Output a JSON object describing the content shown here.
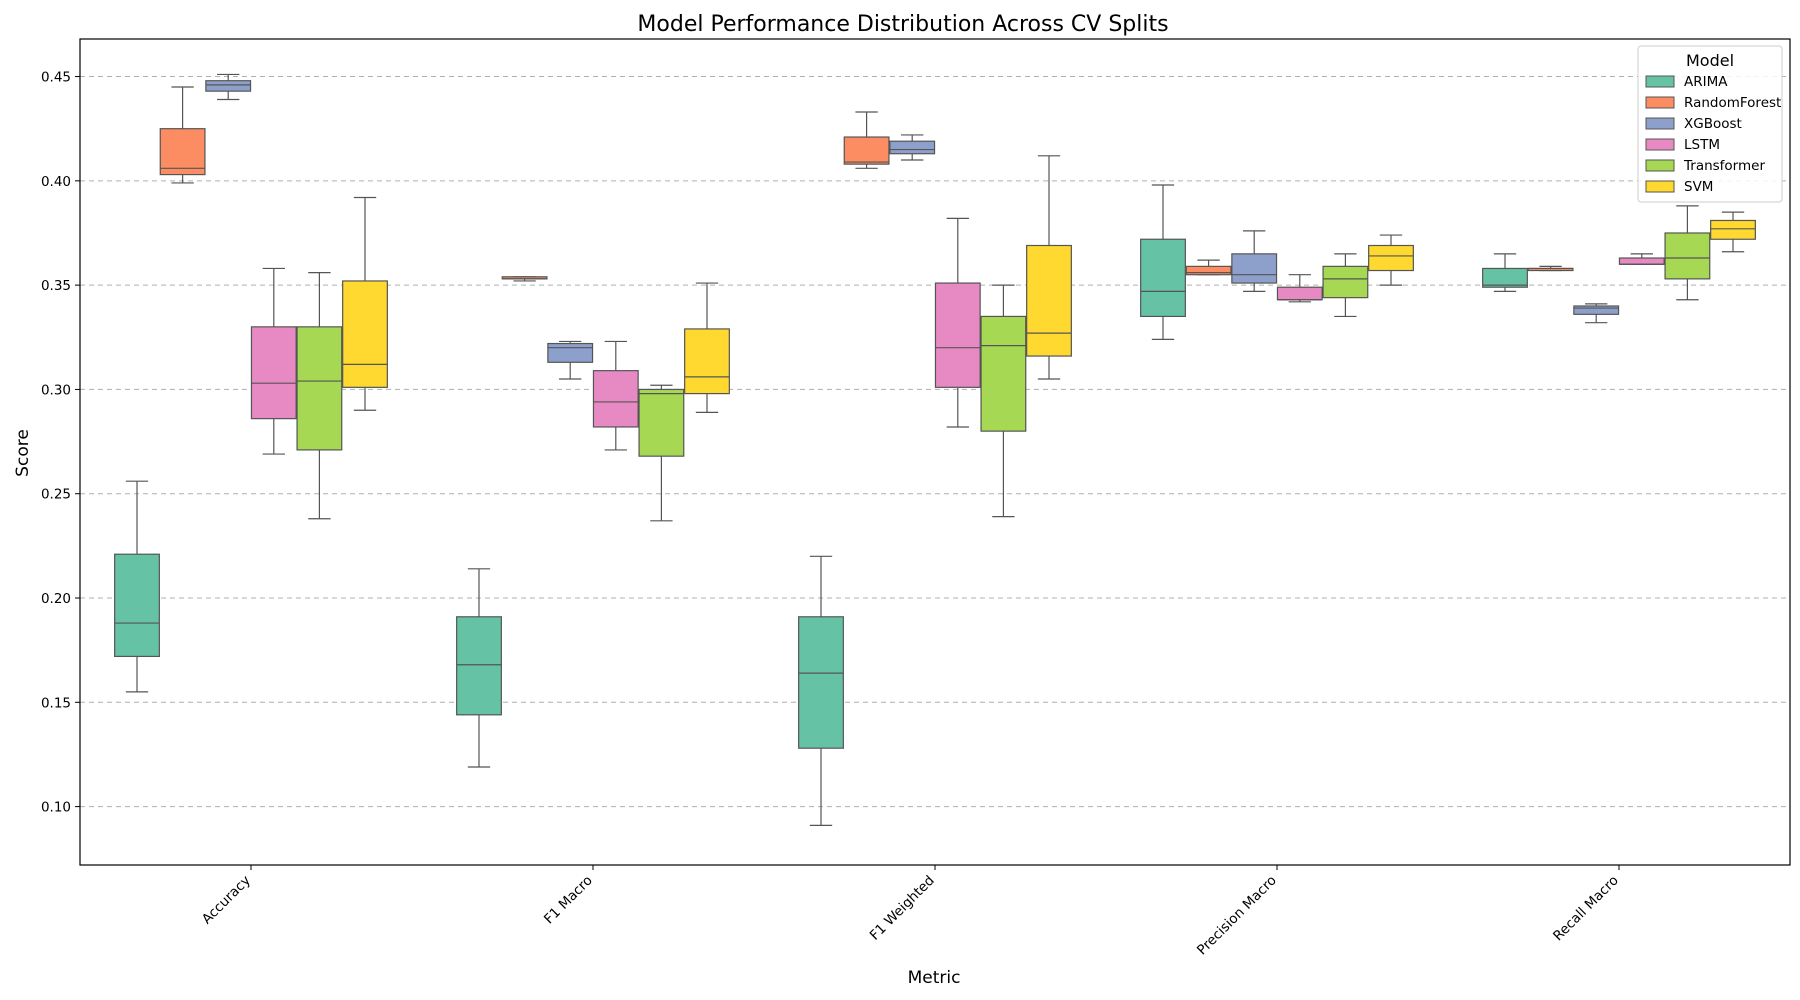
{
  "chart_data": {
    "type": "box",
    "title": "Model Performance Distribution Across CV Splits",
    "xlabel": "Metric",
    "ylabel": "Score",
    "ylim": [
      0.072,
      0.468
    ],
    "yticks": [
      0.1,
      0.15,
      0.2,
      0.25,
      0.3,
      0.35,
      0.4,
      0.45
    ],
    "ytick_labels": [
      "0.10",
      "0.15",
      "0.20",
      "0.25",
      "0.30",
      "0.35",
      "0.40",
      "0.45"
    ],
    "grid": "y-dashed",
    "legend": {
      "title": "Model",
      "position": "top-right"
    },
    "categories": [
      "Accuracy",
      "F1 Macro",
      "F1 Weighted",
      "Precision Macro",
      "Recall Macro"
    ],
    "series": [
      {
        "name": "ARIMA",
        "color": "#66c2a5",
        "boxes": [
          {
            "whislo": 0.155,
            "q1": 0.172,
            "med": 0.188,
            "q3": 0.221,
            "whishi": 0.256
          },
          {
            "whislo": 0.119,
            "q1": 0.144,
            "med": 0.168,
            "q3": 0.191,
            "whishi": 0.214
          },
          {
            "whislo": 0.091,
            "q1": 0.128,
            "med": 0.164,
            "q3": 0.191,
            "whishi": 0.22
          },
          {
            "whislo": 0.324,
            "q1": 0.335,
            "med": 0.347,
            "q3": 0.372,
            "whishi": 0.398
          },
          {
            "whislo": 0.347,
            "q1": 0.349,
            "med": 0.35,
            "q3": 0.358,
            "whishi": 0.365
          }
        ]
      },
      {
        "name": "RandomForest",
        "color": "#fc8d62",
        "boxes": [
          {
            "whislo": 0.399,
            "q1": 0.403,
            "med": 0.406,
            "q3": 0.425,
            "whishi": 0.445
          },
          {
            "whislo": 0.352,
            "q1": 0.353,
            "med": 0.353,
            "q3": 0.354,
            "whishi": 0.354
          },
          {
            "whislo": 0.406,
            "q1": 0.408,
            "med": 0.409,
            "q3": 0.421,
            "whishi": 0.433
          },
          {
            "whislo": 0.355,
            "q1": 0.355,
            "med": 0.356,
            "q3": 0.359,
            "whishi": 0.362
          },
          {
            "whislo": 0.357,
            "q1": 0.357,
            "med": 0.358,
            "q3": 0.358,
            "whishi": 0.359
          }
        ]
      },
      {
        "name": "XGBoost",
        "color": "#8da0cb",
        "boxes": [
          {
            "whislo": 0.439,
            "q1": 0.443,
            "med": 0.446,
            "q3": 0.448,
            "whishi": 0.451
          },
          {
            "whislo": 0.305,
            "q1": 0.313,
            "med": 0.32,
            "q3": 0.322,
            "whishi": 0.323
          },
          {
            "whislo": 0.41,
            "q1": 0.413,
            "med": 0.415,
            "q3": 0.419,
            "whishi": 0.422
          },
          {
            "whislo": 0.347,
            "q1": 0.351,
            "med": 0.355,
            "q3": 0.365,
            "whishi": 0.376
          },
          {
            "whislo": 0.332,
            "q1": 0.336,
            "med": 0.339,
            "q3": 0.34,
            "whishi": 0.341
          }
        ]
      },
      {
        "name": "LSTM",
        "color": "#e78ac3",
        "boxes": [
          {
            "whislo": 0.269,
            "q1": 0.286,
            "med": 0.303,
            "q3": 0.33,
            "whishi": 0.358
          },
          {
            "whislo": 0.271,
            "q1": 0.282,
            "med": 0.294,
            "q3": 0.309,
            "whishi": 0.323
          },
          {
            "whislo": 0.282,
            "q1": 0.301,
            "med": 0.32,
            "q3": 0.351,
            "whishi": 0.382
          },
          {
            "whislo": 0.342,
            "q1": 0.343,
            "med": 0.343,
            "q3": 0.349,
            "whishi": 0.355
          },
          {
            "whislo": 0.36,
            "q1": 0.36,
            "med": 0.36,
            "q3": 0.363,
            "whishi": 0.365
          }
        ]
      },
      {
        "name": "Transformer",
        "color": "#a6d854",
        "boxes": [
          {
            "whislo": 0.238,
            "q1": 0.271,
            "med": 0.304,
            "q3": 0.33,
            "whishi": 0.356
          },
          {
            "whislo": 0.237,
            "q1": 0.268,
            "med": 0.298,
            "q3": 0.3,
            "whishi": 0.302
          },
          {
            "whislo": 0.239,
            "q1": 0.28,
            "med": 0.321,
            "q3": 0.335,
            "whishi": 0.35
          },
          {
            "whislo": 0.335,
            "q1": 0.344,
            "med": 0.353,
            "q3": 0.359,
            "whishi": 0.365
          },
          {
            "whislo": 0.343,
            "q1": 0.353,
            "med": 0.363,
            "q3": 0.375,
            "whishi": 0.388
          }
        ]
      },
      {
        "name": "SVM",
        "color": "#ffd92f",
        "boxes": [
          {
            "whislo": 0.29,
            "q1": 0.301,
            "med": 0.312,
            "q3": 0.352,
            "whishi": 0.392
          },
          {
            "whislo": 0.289,
            "q1": 0.298,
            "med": 0.306,
            "q3": 0.329,
            "whishi": 0.351
          },
          {
            "whislo": 0.305,
            "q1": 0.316,
            "med": 0.327,
            "q3": 0.369,
            "whishi": 0.412
          },
          {
            "whislo": 0.35,
            "q1": 0.357,
            "med": 0.364,
            "q3": 0.369,
            "whishi": 0.374
          },
          {
            "whislo": 0.366,
            "q1": 0.372,
            "med": 0.377,
            "q3": 0.381,
            "whishi": 0.385
          }
        ]
      }
    ]
  }
}
